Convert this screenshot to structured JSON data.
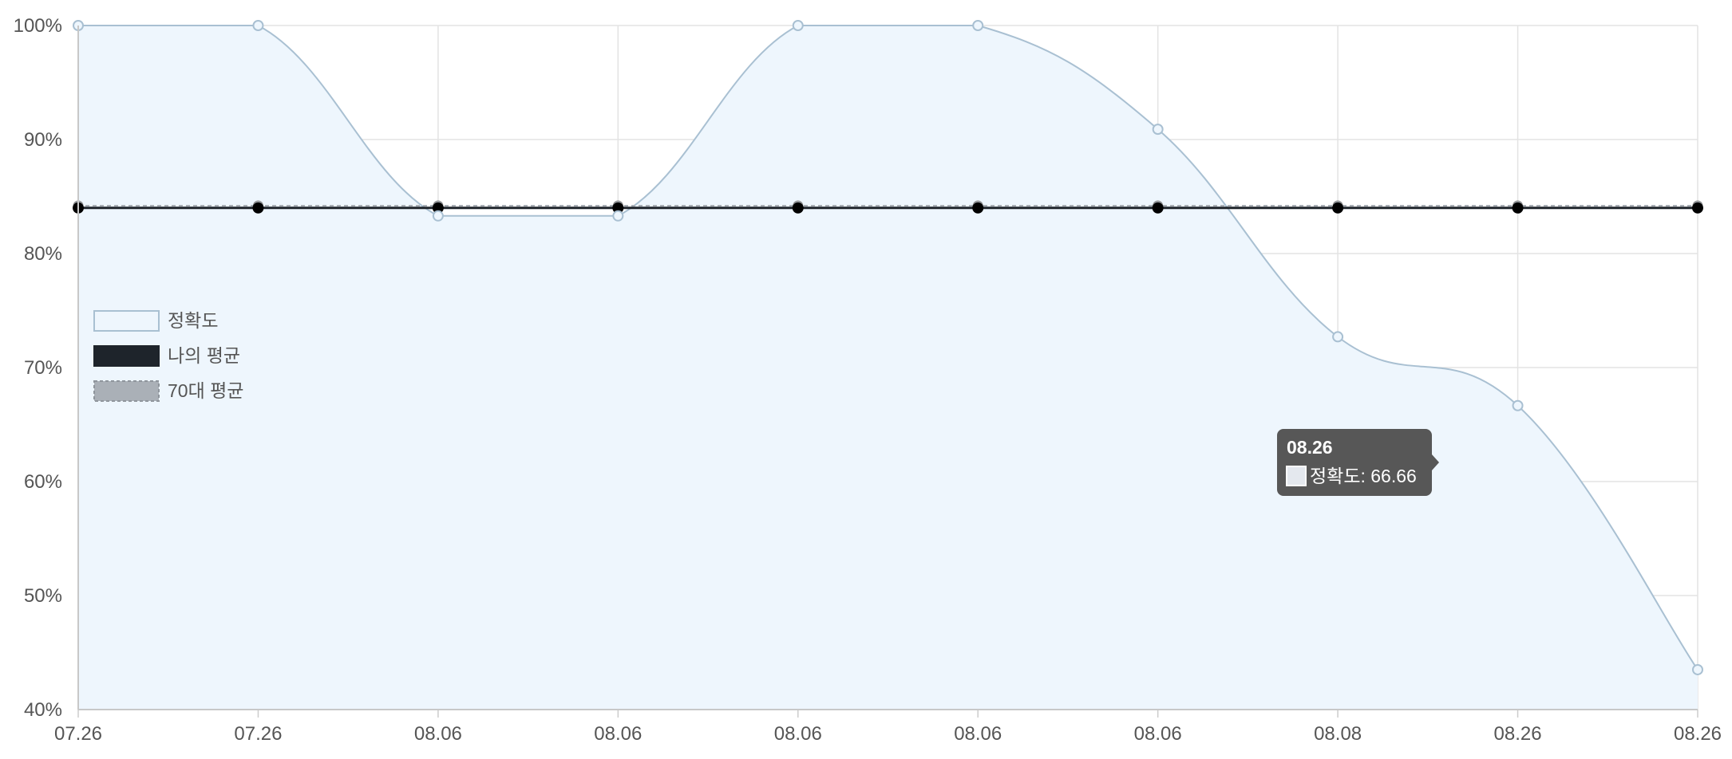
{
  "chart_data": {
    "type": "line",
    "categories": [
      "07.26",
      "07.26",
      "08.06",
      "08.06",
      "08.06",
      "08.06",
      "08.06",
      "08.08",
      "08.26",
      "08.26"
    ],
    "series": [
      {
        "name": "정확도",
        "values": [
          100,
          100,
          83.3,
          83.3,
          100,
          100,
          90.9,
          72.7,
          66.66,
          43.5
        ],
        "fill_color": "#eef6fd",
        "line_color": "#a9c0d2"
      },
      {
        "name": "나의 평균",
        "values": [
          84,
          84,
          84,
          84,
          84,
          84,
          84,
          84,
          84,
          84
        ],
        "line_color": "#1e242b"
      },
      {
        "name": "70대 평균",
        "values": [
          84.2,
          84.2,
          84.2,
          84.2,
          84.2,
          84.2,
          84.2,
          84.2,
          84.2,
          84.2
        ],
        "line_color": "#aab0b7"
      }
    ],
    "ylim": [
      40,
      100
    ],
    "y_ticks": [
      {
        "value": 40,
        "label": "40%"
      },
      {
        "value": 50,
        "label": "50%"
      },
      {
        "value": 60,
        "label": "60%"
      },
      {
        "value": 70,
        "label": "70%"
      },
      {
        "value": 80,
        "label": "80%"
      },
      {
        "value": 90,
        "label": "90%"
      },
      {
        "value": 100,
        "label": "100%"
      }
    ],
    "grid": true,
    "legend_position": "left",
    "tooltip": {
      "index": 8,
      "title": "08.26",
      "text": "정확도: 66.66"
    }
  }
}
